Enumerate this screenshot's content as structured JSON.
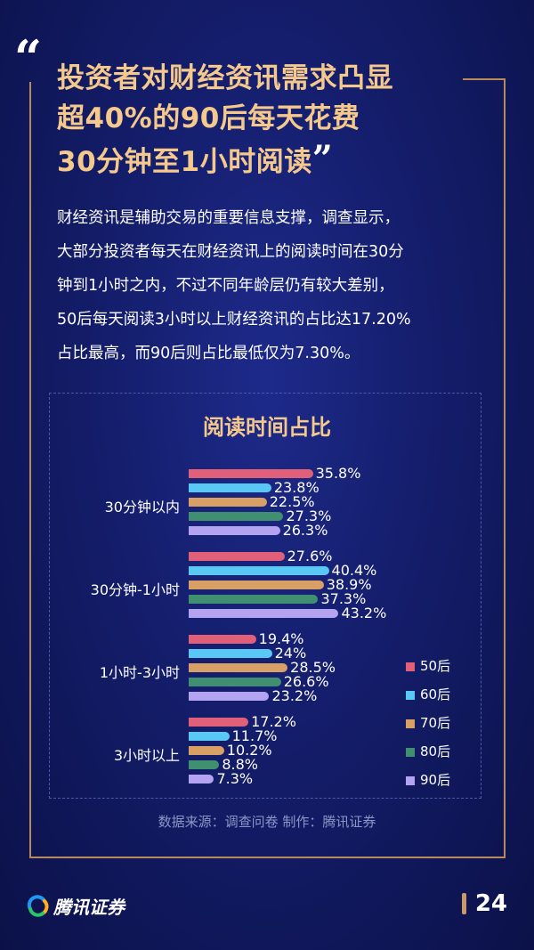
{
  "header": {
    "quote_open": "“",
    "title_lines": [
      "投资者对财经资讯需求凸显",
      "超40%的90后每天花费",
      "30分钟至1小时阅读"
    ],
    "quote_close": "”"
  },
  "body_lines": [
    "财经资讯是辅助交易的重要信息支撑，调查显示，",
    "大部分投资者每天在财经资讯上的阅读时间在30分",
    "钟到1小时之内，不过不同年龄层仍有较大差别，",
    "50后每天阅读3小时以上财经资讯的占比达17.20%",
    "占比最高，而90后则占比最低仅为7.30%。"
  ],
  "chart_data": {
    "type": "bar",
    "orientation": "horizontal",
    "title": "阅读时间占比",
    "categories": [
      "30分钟以内",
      "30分钟-1小时",
      "1小时-3小时",
      "3小时以上"
    ],
    "series": [
      {
        "name": "50后",
        "color": "#e0607a",
        "values": [
          35.8,
          27.6,
          19.4,
          17.2
        ],
        "labels": [
          "35.8%",
          "27.6%",
          "19.4%",
          "17.2%"
        ]
      },
      {
        "name": "60后",
        "color": "#5ac8f5",
        "values": [
          23.8,
          40.4,
          24,
          11.7
        ],
        "labels": [
          "23.8%",
          "40.4%",
          "24%",
          "11.7%"
        ]
      },
      {
        "name": "70后",
        "color": "#d9a066",
        "values": [
          22.5,
          38.9,
          28.5,
          10.2
        ],
        "labels": [
          "22.5%",
          "38.9%",
          "28.5%",
          "10.2%"
        ]
      },
      {
        "name": "80后",
        "color": "#3f8f70",
        "values": [
          27.3,
          37.3,
          26.6,
          8.8
        ],
        "labels": [
          "27.3%",
          "37.3%",
          "26.6%",
          "8.8%"
        ]
      },
      {
        "name": "90后",
        "color": "#b3a3f0",
        "values": [
          26.3,
          43.2,
          23.2,
          7.3
        ],
        "labels": [
          "26.3%",
          "43.2%",
          "23.2%",
          "7.3%"
        ]
      }
    ],
    "legend_position": "right",
    "grid": false
  },
  "footer": {
    "source": "数据来源：调查问卷  制作：腾讯证券",
    "brand": "腾讯证券",
    "page_number": "24"
  }
}
